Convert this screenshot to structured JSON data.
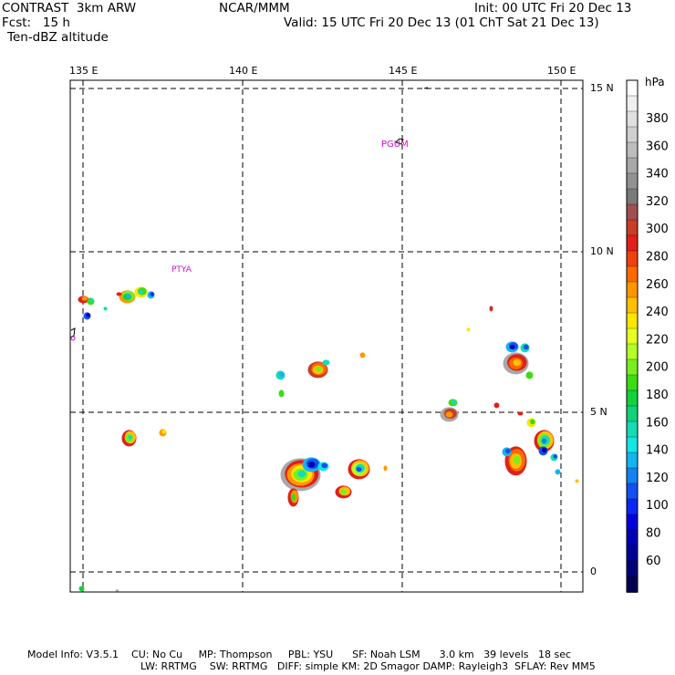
{
  "header": {
    "model": "CONTRAST  3km ARW",
    "center": "NCAR/MMM",
    "init": "Init: 00 UTC Fri 20 Dec 13",
    "fcst": "Fcst:   15 h",
    "valid": "Valid: 15 UTC Fri 20 Dec 13 (01 ChT Sat 21 Dec 13)",
    "field": "Ten-dBZ altitude"
  },
  "map": {
    "lon_labels": [
      "135 E",
      "140 E",
      "145 E",
      "150 E"
    ],
    "lat_labels": [
      "15 N",
      "10 N",
      "5 N",
      "0"
    ],
    "stations": [
      "PGUM",
      "PTYA"
    ],
    "lon_range": [
      134.6,
      150.7
    ],
    "lat_range": [
      -0.6,
      15.2
    ]
  },
  "colorbar": {
    "unit": "hPa",
    "labels": [
      "380",
      "360",
      "340",
      "320",
      "300",
      "280",
      "260",
      "240",
      "220",
      "200",
      "180",
      "160",
      "140",
      "120",
      "100",
      "80",
      "60"
    ],
    "colors": [
      "#ffffff",
      "#f0f0f0",
      "#e0e0e0",
      "#d0d0d0",
      "#bdbdbd",
      "#a8a8a8",
      "#929292",
      "#7a7a7a",
      "#a05050",
      "#c83c28",
      "#e0201a",
      "#f04010",
      "#ff6a00",
      "#ff9600",
      "#ffc000",
      "#ffe600",
      "#e6ff20",
      "#b4ff28",
      "#78f020",
      "#3cdc14",
      "#14d23c",
      "#10d278",
      "#14dcb4",
      "#14e6e6",
      "#14b4f0",
      "#1482f0",
      "#1450f0",
      "#0a28f0",
      "#0000dc",
      "#0000b4",
      "#000096",
      "#000078",
      "#000050"
    ]
  },
  "footer": {
    "line1": "Model Info: V3.5.1    CU: No Cu     MP: Thompson     PBL: YSU      SF: Noah LSM      3.0 km   39 levels   18 sec",
    "line2": "LW: RRTMG    SW: RRTMG   DIFF: simple KM: 2D Smagor DAMP: Rayleigh3  SFLAY: Rev MM5"
  }
}
